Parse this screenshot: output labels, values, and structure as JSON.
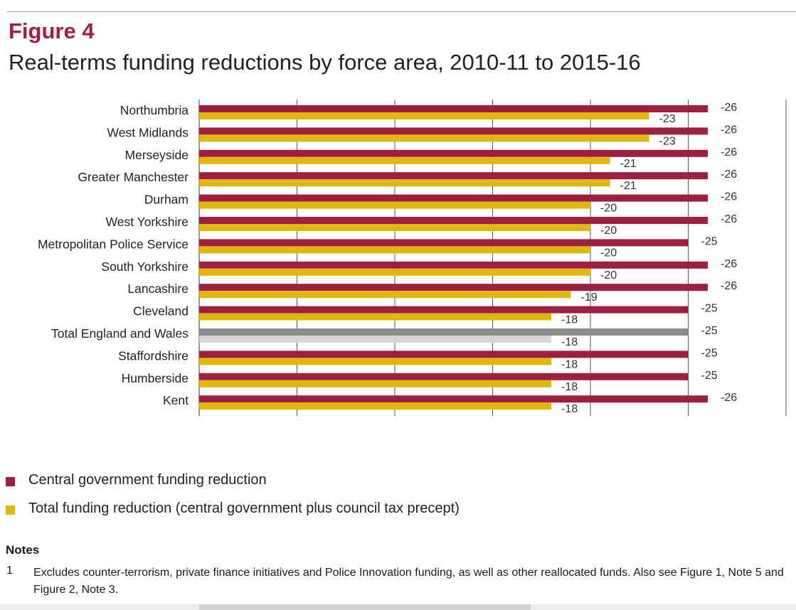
{
  "figure": {
    "label": "Figure 4",
    "title": "Real-terms funding reductions by force area, 2010-11 to 2015-16"
  },
  "colors": {
    "central": "#9e1f3f",
    "total": "#e0b70f",
    "central_total_row": "#8c8c8c",
    "total_total_row": "#d4d4d4",
    "axis": "#555555",
    "title": "#a0213f"
  },
  "chart_data": {
    "type": "bar",
    "orientation": "horizontal",
    "categories": [
      "Northumbria",
      "West Midlands",
      "Merseyside",
      "Greater Manchester",
      "Durham",
      "West Yorkshire",
      "Metropolitan Police Service",
      "South Yorkshire",
      "Lancashire",
      "Cleveland",
      "Total England and Wales",
      "Staffordshire",
      "Humberside",
      "Kent"
    ],
    "highlight_category": "Total England and Wales",
    "series": [
      {
        "name": "Central government funding reduction",
        "values": [
          -26,
          -26,
          -26,
          -26,
          -26,
          -26,
          -25,
          -26,
          -26,
          -25,
          -25,
          -25,
          -25,
          -26
        ],
        "labels": [
          "-26",
          "-26",
          "-26",
          "-26",
          "-26",
          "-26",
          "-25",
          "-26",
          "-26",
          "-25",
          "-25",
          "-25",
          "-25",
          "-26"
        ]
      },
      {
        "name": "Total funding reduction (central government plus council tax precept)",
        "values": [
          -23,
          -23,
          -21,
          -21,
          -20,
          -20,
          -20,
          -20,
          -19,
          -18,
          -18,
          -18,
          -18,
          -18
        ],
        "labels": [
          "-23",
          "-23",
          "-21",
          "-21",
          "-20",
          "-20",
          "-20",
          "-20",
          "-19",
          "-18",
          "-18",
          "-18",
          "-18",
          "-18"
        ]
      }
    ],
    "magnitude_range": [
      0,
      30
    ],
    "grid_step": 5,
    "xlabel": "",
    "ylabel": "",
    "grid": true,
    "legend": "bottom"
  },
  "legend": {
    "central": "Central government funding reduction",
    "total": "Total funding reduction (central government plus council tax precept)"
  },
  "notes": {
    "heading": "Notes",
    "items": [
      {
        "num": "1",
        "text": "Excludes counter-terrorism, private finance initiatives and Police Innovation funding, as well as other reallocated funds. Also see Figure 1, Note 5 and Figure 2, Note 3."
      }
    ]
  }
}
